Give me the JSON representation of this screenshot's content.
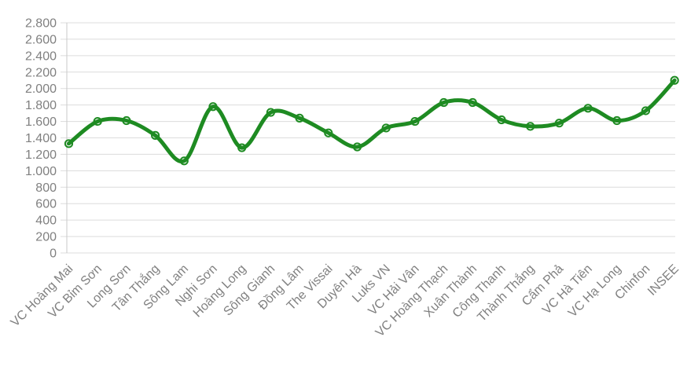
{
  "chart_data": {
    "type": "line",
    "title": "",
    "categories": [
      "VC Hoàng Mai",
      "VC Bỉm Sơn",
      "Long Sơn",
      "Tân Thắng",
      "Sông Lam",
      "Nghi Sơn",
      "Hoàng Long",
      "Sông Gianh",
      "Đồng Lâm",
      "The Vissai",
      "Duyên Hà",
      "Luks VN",
      "VC Hải Vân",
      "VC Hoàng Thạch",
      "Xuân Thành",
      "Công Thanh",
      "Thành Thắng",
      "Cẩm Phả",
      "VC Hà Tiên",
      "VC Hạ Long",
      "Chinfon",
      "INSEE"
    ],
    "values": [
      1330,
      1600,
      1610,
      1430,
      1120,
      1780,
      1280,
      1710,
      1640,
      1460,
      1290,
      1520,
      1600,
      1830,
      1830,
      1620,
      1540,
      1580,
      1760,
      1610,
      1730,
      2100
    ],
    "ylim": [
      0,
      2800
    ],
    "ytick_step": 200,
    "ytick_labels": [
      "0",
      "200",
      "400",
      "600",
      "800",
      "1.000",
      "1.200",
      "1.400",
      "1.600",
      "1.800",
      "2.000",
      "2.200",
      "2.400",
      "2.600",
      "2.800"
    ],
    "xlabel": "",
    "ylabel": "",
    "grid": true,
    "legend_position": "none",
    "line_color": "#1e8b22",
    "marker_style": "open-circle",
    "axis_label_color": "#808080",
    "gridline_color": "#dcdcdc",
    "axisline_color": "#c9c9c9"
  }
}
